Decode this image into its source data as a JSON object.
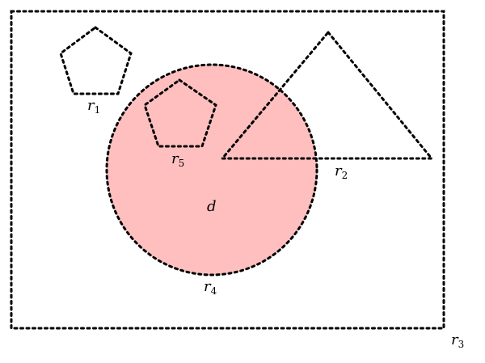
{
  "colors": {
    "region_fill": "#ffbfbf",
    "stroke": "#000000"
  },
  "shapes": {
    "r1": {
      "kind": "pentagon",
      "label": "r",
      "sub": "1"
    },
    "r2": {
      "kind": "triangle",
      "label": "r",
      "sub": "2"
    },
    "r3": {
      "kind": "rectangle",
      "label": "r",
      "sub": "3"
    },
    "r4": {
      "kind": "circle",
      "label": "r",
      "sub": "4",
      "fill_label": "d"
    },
    "r5": {
      "kind": "pentagon",
      "label": "r",
      "sub": "5"
    }
  }
}
